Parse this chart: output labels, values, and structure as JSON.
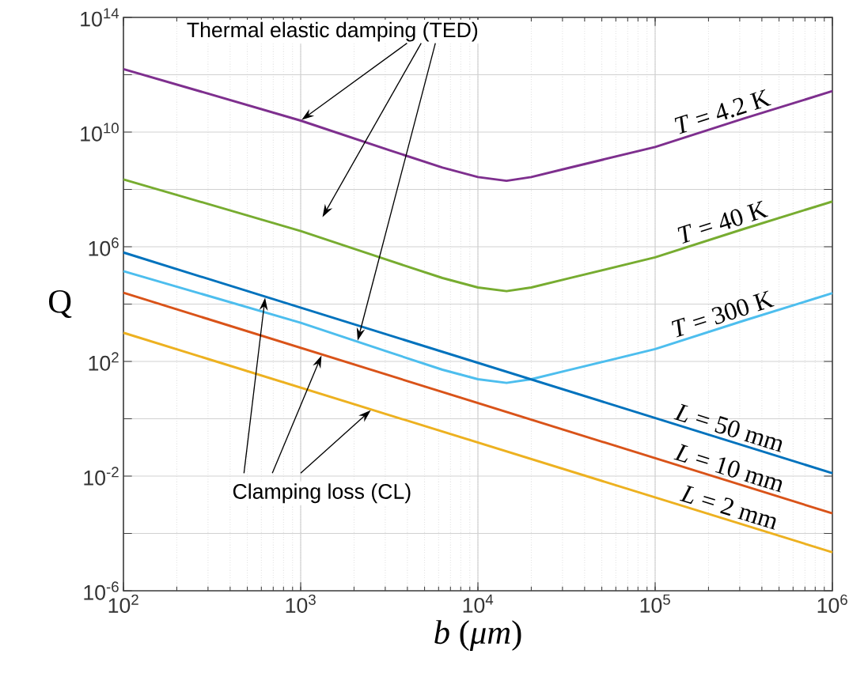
{
  "chart_data": {
    "type": "line",
    "xlabel": "*b* (*μm*)",
    "ylabel": "Q",
    "log": "xy",
    "grid": true,
    "xlim": [
      100,
      1000000
    ],
    "ylim": [
      1e-06,
      100000000000000.0
    ],
    "xticks": [
      {
        "value": 100,
        "label": "10$^{2}$"
      },
      {
        "value": 1000,
        "label": "10$^{3}$"
      },
      {
        "value": 10000,
        "label": "10$^{4}$"
      },
      {
        "value": 100000,
        "label": "10$^{5}$"
      },
      {
        "value": 1000000,
        "label": "10$^{6}$"
      }
    ],
    "yticks": [
      {
        "value": 1e-06,
        "label": "10$^{-6}$"
      },
      {
        "value": 0.0001,
        "label": null
      },
      {
        "value": 0.01,
        "label": "10$^{-2}$"
      },
      {
        "value": 1,
        "label": null
      },
      {
        "value": 100,
        "label": "10$^{2}$"
      },
      {
        "value": 10000.0,
        "label": null
      },
      {
        "value": 1000000.0,
        "label": "10$^{6}$"
      },
      {
        "value": 100000000.0,
        "label": null
      },
      {
        "value": 10000000000.0,
        "label": "10$^{10}$"
      },
      {
        "value": 1000000000000.0,
        "label": null
      },
      {
        "value": 100000000000000.0,
        "label": "10$^{14}$"
      }
    ],
    "series": [
      {
        "name": "*T* = 4.2 K",
        "color": "#7e2f8e",
        "x": [
          100,
          1000,
          3160,
          6310,
          10000,
          14500,
          20000,
          31600,
          100000,
          316000,
          1000000
        ],
        "values": [
          1580000000000.0,
          25100000000.0,
          2340000000.0,
          575000000.0,
          269000000.0,
          200000000.0,
          269000000.0,
          537000000.0,
          3020000000.0,
          29500000000.0,
          269000000000.0
        ]
      },
      {
        "name": "*T* = 40 K",
        "color": "#77ac30",
        "x": [
          100,
          1000,
          3160,
          6310,
          10000,
          14500,
          20000,
          31600,
          100000,
          316000,
          1000000
        ],
        "values": [
          224000000.0,
          3550000.0,
          331000.0,
          81300.0,
          38000.0,
          28200.0,
          38000.0,
          75900.0,
          427000.0,
          4170000.0,
          38000000.0
        ]
      },
      {
        "name": "*T* = 300 K",
        "color": "#4dbeee",
        "x": [
          100,
          1000,
          3160,
          6310,
          10000,
          14500,
          20000,
          31600,
          100000,
          316000,
          1000000
        ],
        "values": [
          141000.0,
          2240,
          209,
          51.3,
          24,
          17.8,
          24,
          47.9,
          269,
          2630,
          24000
        ]
      },
      {
        "name": "*L* = 50 mm",
        "color": "#0072bd",
        "x": [
          100,
          1000000
        ],
        "values": [
          630000.0,
          0.0126
        ]
      },
      {
        "name": "*L* = 10 mm",
        "color": "#d95319",
        "x": [
          100,
          1000000
        ],
        "values": [
          25000.0,
          0.0005
        ]
      },
      {
        "name": "*L* = 2 mm",
        "color": "#edb120",
        "x": [
          100,
          1000000
        ],
        "values": [
          1000,
          2.2e-05
        ]
      }
    ],
    "annotations": [
      "Thermal elastic damping (TED)",
      "Clamping loss (CL)"
    ]
  }
}
